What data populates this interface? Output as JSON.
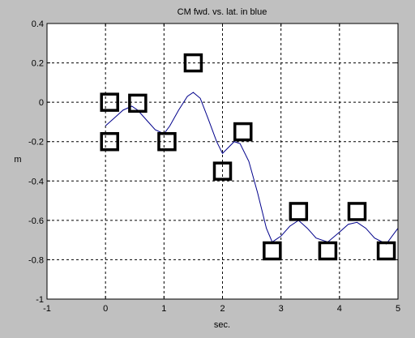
{
  "window": {
    "background": "#c0c0c0"
  },
  "chart_data": {
    "type": "line",
    "title": "CM fwd. vs. lat. in blue",
    "xlabel": "sec.",
    "ylabel": "m",
    "xlim": [
      -1,
      5
    ],
    "ylim": [
      -1,
      0.4
    ],
    "xticks": [
      -1,
      0,
      1,
      2,
      3,
      4,
      5
    ],
    "yticks": [
      -1,
      -0.8,
      -0.6,
      -0.4,
      -0.2,
      0,
      0.2,
      0.4
    ],
    "xtick_labels": [
      "-1",
      "0",
      "1",
      "2",
      "3",
      "4",
      "5"
    ],
    "ytick_labels": [
      "-1",
      "-0.8",
      "-0.6",
      "-0.4",
      "-0.2",
      "0",
      "0.2",
      "0.4"
    ],
    "grid": true,
    "grid_style": "dashed",
    "series": [
      {
        "type": "line",
        "color": "#00008b",
        "x": [
          0,
          0.15,
          0.3,
          0.45,
          0.55,
          0.7,
          0.85,
          1.0,
          1.1,
          1.25,
          1.4,
          1.5,
          1.62,
          1.75,
          1.9,
          2.0,
          2.1,
          2.2,
          2.3,
          2.45,
          2.6,
          2.75,
          2.85,
          3.0,
          3.15,
          3.3,
          3.45,
          3.6,
          3.8,
          4.0,
          4.15,
          4.3,
          4.45,
          4.6,
          4.8,
          5.0
        ],
        "y": [
          -0.12,
          -0.08,
          -0.04,
          -0.02,
          -0.04,
          -0.09,
          -0.14,
          -0.16,
          -0.12,
          -0.04,
          0.03,
          0.05,
          0.02,
          -0.08,
          -0.2,
          -0.26,
          -0.23,
          -0.2,
          -0.21,
          -0.3,
          -0.46,
          -0.64,
          -0.71,
          -0.68,
          -0.63,
          -0.6,
          -0.64,
          -0.69,
          -0.71,
          -0.66,
          -0.62,
          -0.61,
          -0.64,
          -0.69,
          -0.72,
          -0.64
        ]
      },
      {
        "type": "scatter",
        "marker": "square",
        "color": "#000000",
        "x": [
          0.07,
          0.07,
          0.55,
          1.05,
          1.5,
          2.0,
          2.35,
          2.85,
          3.3,
          3.8,
          4.3,
          4.8
        ],
        "y": [
          0.0,
          -0.2,
          -0.005,
          -0.2,
          0.2,
          -0.35,
          -0.15,
          -0.755,
          -0.555,
          -0.755,
          -0.555,
          -0.755
        ]
      }
    ]
  }
}
